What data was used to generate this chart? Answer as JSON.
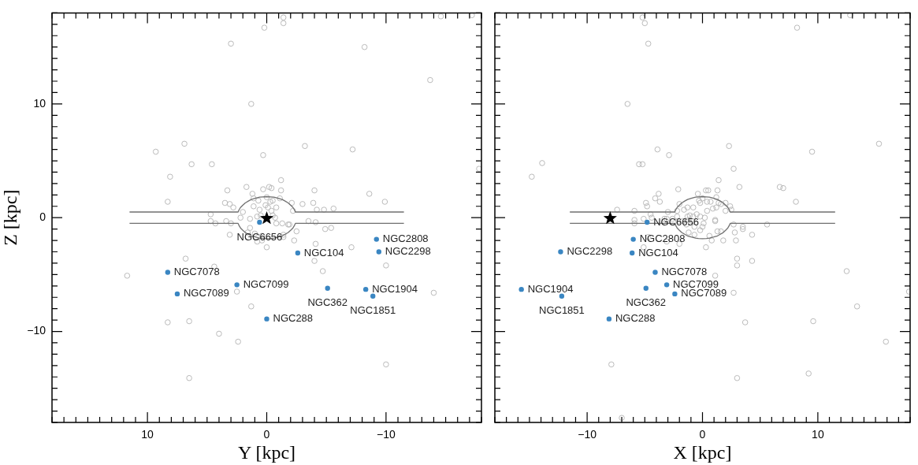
{
  "chart_data": [
    {
      "type": "scatter",
      "xlabel": "Y [kpc]",
      "ylabel": "Z [kpc]",
      "xlim": [
        18,
        -18
      ],
      "ylim": [
        -18,
        18
      ],
      "grid": false,
      "legend": false,
      "xticks": [
        {
          "value": -18,
          "label": null
        },
        {
          "value": -17,
          "label": null
        },
        {
          "value": -16,
          "label": null
        },
        {
          "value": -15,
          "label": null
        },
        {
          "value": -14,
          "label": null
        },
        {
          "value": -13,
          "label": null
        },
        {
          "value": -12,
          "label": null
        },
        {
          "value": -11,
          "label": null
        },
        {
          "value": -10,
          "label": "−10"
        },
        {
          "value": -9,
          "label": null
        },
        {
          "value": -8,
          "label": null
        },
        {
          "value": -7,
          "label": null
        },
        {
          "value": -6,
          "label": null
        },
        {
          "value": -5,
          "label": null
        },
        {
          "value": -4,
          "label": null
        },
        {
          "value": -3,
          "label": null
        },
        {
          "value": -2,
          "label": null
        },
        {
          "value": -1,
          "label": null
        },
        {
          "value": 0,
          "label": "0"
        },
        {
          "value": 1,
          "label": null
        },
        {
          "value": 2,
          "label": null
        },
        {
          "value": 3,
          "label": null
        },
        {
          "value": 4,
          "label": null
        },
        {
          "value": 5,
          "label": null
        },
        {
          "value": 6,
          "label": null
        },
        {
          "value": 7,
          "label": null
        },
        {
          "value": 8,
          "label": null
        },
        {
          "value": 9,
          "label": null
        },
        {
          "value": 10,
          "label": "10"
        },
        {
          "value": 11,
          "label": null
        },
        {
          "value": 12,
          "label": null
        },
        {
          "value": 13,
          "label": null
        },
        {
          "value": 14,
          "label": null
        },
        {
          "value": 15,
          "label": null
        },
        {
          "value": 16,
          "label": null
        },
        {
          "value": 17,
          "label": null
        },
        {
          "value": 18,
          "label": null
        }
      ],
      "yticks": [
        {
          "value": -18,
          "label": null
        },
        {
          "value": -17,
          "label": null
        },
        {
          "value": -16,
          "label": null
        },
        {
          "value": -15,
          "label": null
        },
        {
          "value": -14,
          "label": null
        },
        {
          "value": -13,
          "label": null
        },
        {
          "value": -12,
          "label": null
        },
        {
          "value": -11,
          "label": null
        },
        {
          "value": -10,
          "label": "−10"
        },
        {
          "value": -9,
          "label": null
        },
        {
          "value": -8,
          "label": null
        },
        {
          "value": -7,
          "label": null
        },
        {
          "value": -6,
          "label": null
        },
        {
          "value": -5,
          "label": null
        },
        {
          "value": -4,
          "label": null
        },
        {
          "value": -3,
          "label": null
        },
        {
          "value": -2,
          "label": null
        },
        {
          "value": -1,
          "label": null
        },
        {
          "value": 0,
          "label": "0"
        },
        {
          "value": 1,
          "label": null
        },
        {
          "value": 2,
          "label": null
        },
        {
          "value": 3,
          "label": null
        },
        {
          "value": 4,
          "label": null
        },
        {
          "value": 5,
          "label": null
        },
        {
          "value": 6,
          "label": null
        },
        {
          "value": 7,
          "label": null
        },
        {
          "value": 8,
          "label": null
        },
        {
          "value": 9,
          "label": null
        },
        {
          "value": 10,
          "label": "10"
        },
        {
          "value": 11,
          "label": null
        },
        {
          "value": 12,
          "label": null
        },
        {
          "value": 13,
          "label": null
        },
        {
          "value": 14,
          "label": null
        },
        {
          "value": 15,
          "label": null
        },
        {
          "value": 16,
          "label": null
        },
        {
          "value": 17,
          "label": null
        },
        {
          "value": 18,
          "label": null
        }
      ],
      "series": [
        {
          "type": "scatter",
          "marker": "circle",
          "color": "#bbbbbb",
          "x": [
            -1.4,
            -1.4,
            0.2,
            3.0,
            -8.2,
            -14.6,
            -17.2,
            -13.7,
            1.3,
            -17.8,
            9.3,
            6.9,
            6.3,
            4.6,
            8.1,
            -3.2,
            0.3,
            -7.2,
            8.3,
            3.3,
            1.7,
            0.3,
            -0.2,
            -0.4,
            -1.2,
            -1.2,
            -4.0,
            -8.6,
            -9.9,
            3.5,
            3.1,
            2.8,
            1.2,
            1.1,
            0.7,
            0.0,
            -0.5,
            -0.3,
            -1.1,
            -0.8,
            -2.1,
            -2.2,
            -3.0,
            -3.9,
            -4.2,
            -4.8,
            -5.6,
            1.1,
            0.6,
            0.1,
            -0.1,
            -0.4,
            2.0,
            4.7,
            2.2,
            1.4,
            -0.7,
            0.8,
            -3.5,
            -4.1,
            4.7,
            3.4,
            0.5,
            -0.5,
            4.3,
            3.0,
            -0.8,
            -1.3,
            -1.8,
            -1.9,
            -4.9,
            -5.4,
            3.1,
            1.6,
            1.4,
            1.0,
            0.4,
            0.4,
            0.8,
            0.0,
            -1.4,
            -1.4,
            -2.5,
            -2.3,
            -4.1,
            -7.1,
            6.8,
            4.4,
            -4.0,
            -4.7,
            -10.0,
            11.7,
            2.5,
            -14.0,
            1.3,
            8.3,
            6.5,
            4.0,
            2.4,
            -10.0,
            6.5
          ],
          "values": [
            17.6,
            17.1,
            16.7,
            15.3,
            15.0,
            17.7,
            17.8,
            12.1,
            10.0,
            4.3,
            5.8,
            6.5,
            4.7,
            4.7,
            3.6,
            6.3,
            5.5,
            6.0,
            1.4,
            2.4,
            2.7,
            2.5,
            2.7,
            2.6,
            3.3,
            2.4,
            2.4,
            2.1,
            1.4,
            1.3,
            1.2,
            0.9,
            2.1,
            1.7,
            1.5,
            1.8,
            1.5,
            1.4,
            1.7,
            0.9,
            1.3,
            0.6,
            1.2,
            1.3,
            0.7,
            0.7,
            0.8,
            1.0,
            0.7,
            1.1,
            0.9,
            0.6,
            0.5,
            0.3,
            0.0,
            -0.1,
            0.0,
            0.1,
            -0.3,
            -0.4,
            -0.3,
            -0.3,
            0.2,
            0.2,
            -0.5,
            -0.5,
            -0.5,
            -0.5,
            -0.6,
            -0.6,
            -1.0,
            -0.9,
            -1.5,
            -1.3,
            -0.9,
            -1.4,
            -1.6,
            -2.0,
            -2.1,
            -2.6,
            -1.5,
            -1.7,
            -1.2,
            -2.0,
            -2.3,
            -2.6,
            -3.6,
            -4.3,
            -3.8,
            -4.7,
            -4.2,
            -5.1,
            -6.5,
            -6.6,
            -7.8,
            -9.2,
            -9.1,
            -10.2,
            -10.9,
            -12.9,
            -14.1
          ]
        },
        {
          "type": "line",
          "marker": "none",
          "color": "#707070",
          "x": [
            -11.5,
            -2.4,
            -2.32,
            -2.2,
            -2.0,
            -1.8,
            -1.54,
            -1.3,
            -0.98,
            -0.6,
            -0.35,
            0,
            0.35,
            0.6,
            0.98,
            1.3,
            1.54,
            1.8,
            2.0,
            2.2,
            2.32,
            2.4,
            11.5
          ],
          "values": [
            0.5,
            0.5,
            0.69,
            0.9,
            1.11,
            1.3,
            1.46,
            1.6,
            1.7,
            1.8,
            1.83,
            1.85,
            1.83,
            1.8,
            1.7,
            1.6,
            1.46,
            1.3,
            1.11,
            0.9,
            0.69,
            0.5,
            0.5
          ]
        },
        {
          "type": "line",
          "marker": "none",
          "color": "#707070",
          "x": [
            -11.5,
            -2.4,
            -2.32,
            -2.2,
            -2.0,
            -1.8,
            -1.54,
            -1.3,
            -0.98,
            -0.6,
            -0.35,
            0,
            0.35,
            0.6,
            0.98,
            1.3,
            1.54,
            1.8,
            2.0,
            2.2,
            2.32,
            2.4,
            11.5
          ],
          "values": [
            -0.5,
            -0.5,
            -0.69,
            -0.9,
            -1.11,
            -1.3,
            -1.46,
            -1.6,
            -1.7,
            -1.8,
            -1.83,
            -1.85,
            -1.83,
            -1.8,
            -1.7,
            -1.6,
            -1.46,
            -1.3,
            -1.11,
            -0.9,
            -0.69,
            -0.5,
            -0.5
          ]
        },
        {
          "type": "scatter",
          "marker": "circle",
          "color": "#3a86c2",
          "x": [
            0.6,
            -9.2,
            -9.4,
            -2.6,
            8.3,
            2.5,
            7.5,
            -5.1,
            -8.3,
            -8.9,
            0.0
          ],
          "values": [
            -0.4,
            -1.9,
            -3.0,
            -3.1,
            -4.8,
            -5.9,
            -6.7,
            -6.2,
            -6.3,
            -6.9,
            -8.9
          ]
        },
        {
          "type": "scatter",
          "marker": "star",
          "color": "#000000",
          "x": [
            0
          ],
          "values": [
            0
          ]
        }
      ],
      "annotations": [
        {
          "text": "NGC6656",
          "x": 0.6,
          "y": -0.4
        },
        {
          "text": "NGC2808",
          "x": -9.2,
          "y": -1.9
        },
        {
          "text": "NGC2298",
          "x": -9.4,
          "y": -3.0
        },
        {
          "text": "NGC104",
          "x": -2.6,
          "y": -3.1
        },
        {
          "text": "NGC7078",
          "x": 8.3,
          "y": -4.8
        },
        {
          "text": "NGC7099",
          "x": 2.5,
          "y": -5.9
        },
        {
          "text": "NGC7089",
          "x": 7.5,
          "y": -6.7
        },
        {
          "text": "NGC362",
          "x": -5.1,
          "y": -6.2
        },
        {
          "text": "NGC1904",
          "x": -8.3,
          "y": -6.3
        },
        {
          "text": "NGC1851",
          "x": -8.9,
          "y": -6.9
        },
        {
          "text": "NGC288",
          "x": 0.0,
          "y": -8.9
        }
      ]
    },
    {
      "type": "scatter",
      "xlabel": "X [kpc]",
      "xlim": [
        -18,
        18
      ],
      "ylim": [
        -18,
        18
      ],
      "grid": false,
      "legend": false,
      "tick_labels": "x",
      "xticks": [
        {
          "value": -18,
          "label": null
        },
        {
          "value": -17,
          "label": null
        },
        {
          "value": -16,
          "label": null
        },
        {
          "value": -15,
          "label": null
        },
        {
          "value": -14,
          "label": null
        },
        {
          "value": -13,
          "label": null
        },
        {
          "value": -12,
          "label": null
        },
        {
          "value": -11,
          "label": null
        },
        {
          "value": -10,
          "label": "−10"
        },
        {
          "value": -9,
          "label": null
        },
        {
          "value": -8,
          "label": null
        },
        {
          "value": -7,
          "label": null
        },
        {
          "value": -6,
          "label": null
        },
        {
          "value": -5,
          "label": null
        },
        {
          "value": -4,
          "label": null
        },
        {
          "value": -3,
          "label": null
        },
        {
          "value": -2,
          "label": null
        },
        {
          "value": -1,
          "label": null
        },
        0,
        {
          "value": 1,
          "label": null
        },
        {
          "value": 2,
          "label": null
        },
        {
          "value": 3,
          "label": null
        },
        {
          "value": 4,
          "label": null
        },
        {
          "value": 5,
          "label": null
        },
        {
          "value": 6,
          "label": null
        },
        {
          "value": 7,
          "label": null
        },
        {
          "value": 8,
          "label": null
        },
        {
          "value": 9,
          "label": null
        },
        10,
        {
          "value": 11,
          "label": null
        },
        {
          "value": 12,
          "label": null
        },
        {
          "value": 13,
          "label": null
        },
        {
          "value": 14,
          "label": null
        },
        {
          "value": 15,
          "label": null
        },
        {
          "value": 16,
          "label": null
        },
        {
          "value": 17,
          "label": null
        },
        {
          "value": 18,
          "label": null
        }
      ],
      "yticks": [
        {
          "value": -18,
          "label": null
        },
        {
          "value": -17,
          "label": null
        },
        {
          "value": -16,
          "label": null
        },
        {
          "value": -15,
          "label": null
        },
        {
          "value": -14,
          "label": null
        },
        {
          "value": -13,
          "label": null
        },
        {
          "value": -12,
          "label": null
        },
        {
          "value": -11,
          "label": null
        },
        -10,
        {
          "value": -9,
          "label": null
        },
        {
          "value": -8,
          "label": null
        },
        {
          "value": -7,
          "label": null
        },
        {
          "value": -6,
          "label": null
        },
        {
          "value": -5,
          "label": null
        },
        {
          "value": -4,
          "label": null
        },
        {
          "value": -3,
          "label": null
        },
        {
          "value": -2,
          "label": null
        },
        {
          "value": -1,
          "label": null
        },
        0,
        {
          "value": 1,
          "label": null
        },
        {
          "value": 2,
          "label": null
        },
        {
          "value": 3,
          "label": null
        },
        {
          "value": 4,
          "label": null
        },
        {
          "value": 5,
          "label": null
        },
        {
          "value": 6,
          "label": null
        },
        {
          "value": 7,
          "label": null
        },
        {
          "value": 8,
          "label": null
        },
        {
          "value": 9,
          "label": null
        },
        10,
        {
          "value": 11,
          "label": null
        },
        {
          "value": 12,
          "label": null
        },
        {
          "value": 13,
          "label": null
        },
        {
          "value": 14,
          "label": null
        },
        {
          "value": 15,
          "label": null
        },
        {
          "value": 16,
          "label": null
        },
        {
          "value": 17,
          "label": null
        },
        {
          "value": 18,
          "label": null
        }
      ],
      "series": [
        {
          "type": "scatter",
          "marker": "circle",
          "color": "#bbbbbb",
          "x": [
            -5.2,
            -5.0,
            -4.7,
            8.2,
            12.8,
            -6.5,
            15.3,
            -14.8,
            -13.9,
            -5.5,
            -5.2,
            -3.9,
            -2.9,
            2.3,
            9.5,
            2.7,
            1.4,
            3.2,
            6.7,
            7.0,
            8.1,
            -2.1,
            -3.8,
            -4.1,
            -3.7,
            -4.9,
            -4.8,
            -7.4,
            -5.9,
            -0.4,
            0.3,
            0.5,
            1.3,
            1.2,
            -0.3,
            -0.2,
            0.4,
            0.7,
            1.4,
            1.6,
            2.0,
            2.4,
            2.5,
            2.0,
            1.2,
            0.9,
            0.4,
            0.0,
            -2.0,
            -2.2,
            -1.3,
            -0.8,
            -1.6,
            -3.0,
            -4.5,
            -5.1,
            -5.9,
            -3.3,
            -3.1,
            -2.6,
            -2.2,
            -1.3,
            -1.1,
            -0.8,
            -0.5,
            -0.2,
            0.2,
            1.1,
            -5.9,
            -4.4,
            -2.1,
            -1.7,
            -1.4,
            -1.2,
            -0.9,
            -0.7,
            0.1,
            0.0,
            -0.2,
            -0.7,
            -1.2,
            1.1,
            2.7,
            3.5,
            3.5,
            5.6,
            2.8,
            2.9,
            4.3,
            0.6,
            1.3,
            1.6,
            0.8,
            1.8,
            0.3,
            -2.0,
            -4.7,
            -5.1,
            -3.1,
            3.0,
            3.0,
            4.3,
            1.1,
            12.5,
            2.7,
            17.9,
            13.4,
            3.7,
            9.6,
            15.9,
            -7.9,
            3.0,
            9.2,
            -7.0
          ],
          "values": [
            17.6,
            17.1,
            15.3,
            16.7,
            17.8,
            10.0,
            6.5,
            3.6,
            4.8,
            4.7,
            4.7,
            6.0,
            5.5,
            6.3,
            5.8,
            4.3,
            3.3,
            2.7,
            2.7,
            2.6,
            1.4,
            2.5,
            2.1,
            1.7,
            1.4,
            1.3,
            1.0,
            0.7,
            0.6,
            2.1,
            2.4,
            2.4,
            2.4,
            1.8,
            1.5,
            1.3,
            1.4,
            1.4,
            1.3,
            1.2,
            1.3,
            1.0,
            0.7,
            0.6,
            0.9,
            0.8,
            0.6,
            1.7,
            1.2,
            0.6,
            0.9,
            0.9,
            0.7,
            0.5,
            0.3,
            -0.1,
            -0.2,
            -0.1,
            -0.1,
            -0.1,
            0.1,
            0.1,
            0.2,
            0.1,
            0.3,
            0.1,
            0.0,
            -0.2,
            -0.5,
            0.0,
            -0.3,
            -0.3,
            -0.6,
            -0.2,
            -0.3,
            -0.8,
            -0.5,
            -0.8,
            -1.1,
            -1.5,
            -1.3,
            -0.3,
            -0.6,
            -0.8,
            -1.0,
            -0.6,
            -1.3,
            -2.0,
            -1.5,
            -1.6,
            -1.2,
            -1.2,
            -2.0,
            -2.0,
            -2.6,
            -2.3,
            -1.7,
            -2.6,
            -2.1,
            -3.6,
            -4.2,
            -3.8,
            -5.1,
            -4.7,
            -6.6,
            -6.5,
            -7.8,
            -9.2,
            -9.1,
            -10.9,
            -12.9,
            -14.1,
            -13.7,
            -17.6
          ]
        },
        {
          "type": "line",
          "marker": "none",
          "color": "#707070",
          "x": [
            -11.5,
            -2.4,
            -2.32,
            -2.2,
            -2.0,
            -1.8,
            -1.54,
            -1.3,
            -0.98,
            -0.6,
            -0.35,
            0,
            0.35,
            0.6,
            0.98,
            1.3,
            1.54,
            1.8,
            2.0,
            2.2,
            2.32,
            2.4,
            11.5
          ],
          "values": [
            0.5,
            0.5,
            0.69,
            0.9,
            1.11,
            1.3,
            1.46,
            1.6,
            1.7,
            1.8,
            1.83,
            1.85,
            1.83,
            1.8,
            1.7,
            1.6,
            1.46,
            1.3,
            1.11,
            0.9,
            0.69,
            0.5,
            0.5
          ]
        },
        {
          "type": "line",
          "marker": "none",
          "color": "#707070",
          "x": [
            -11.5,
            -2.4,
            -2.32,
            -2.2,
            -2.0,
            -1.8,
            -1.54,
            -1.3,
            -0.98,
            -0.6,
            -0.35,
            0,
            0.35,
            0.6,
            0.98,
            1.3,
            1.54,
            1.8,
            2.0,
            2.2,
            2.32,
            2.4,
            11.5
          ],
          "values": [
            -0.5,
            -0.5,
            -0.69,
            -0.9,
            -1.11,
            -1.3,
            -1.46,
            -1.6,
            -1.7,
            -1.8,
            -1.83,
            -1.85,
            -1.83,
            -1.8,
            -1.7,
            -1.6,
            -1.46,
            -1.3,
            -1.11,
            -0.9,
            -0.69,
            -0.5,
            -0.5
          ]
        },
        {
          "type": "scatter",
          "marker": "circle",
          "color": "#3a86c2",
          "x": [
            -4.8,
            -6.0,
            -12.3,
            -6.1,
            -4.1,
            -3.1,
            -2.4,
            -4.9,
            -15.7,
            -12.2,
            -8.1
          ],
          "values": [
            -0.4,
            -1.9,
            -3.0,
            -3.1,
            -4.8,
            -5.9,
            -6.7,
            -6.2,
            -6.3,
            -6.9,
            -8.9
          ]
        },
        {
          "type": "scatter",
          "marker": "star",
          "color": "#000000",
          "x": [
            -8
          ],
          "values": [
            0
          ]
        }
      ],
      "annotations": [
        {
          "text": "NGC6656",
          "x": -4.8,
          "y": -0.4
        },
        {
          "text": "NGC2808",
          "x": -6.0,
          "y": -1.9
        },
        {
          "text": "NGC2298",
          "x": -12.3,
          "y": -3.0
        },
        {
          "text": "NGC104",
          "x": -6.1,
          "y": -3.1
        },
        {
          "text": "NGC7078",
          "x": -4.1,
          "y": -4.8
        },
        {
          "text": "NGC7099",
          "x": -3.1,
          "y": -5.9
        },
        {
          "text": "NGC7089",
          "x": -2.4,
          "y": -6.7
        },
        {
          "text": "NGC362",
          "x": -4.9,
          "y": -6.2
        },
        {
          "text": "NGC1904",
          "x": -15.7,
          "y": -6.3
        },
        {
          "text": "NGC1851",
          "x": -12.2,
          "y": -6.9
        },
        {
          "text": "NGC288",
          "x": -8.1,
          "y": -8.9
        }
      ]
    }
  ]
}
